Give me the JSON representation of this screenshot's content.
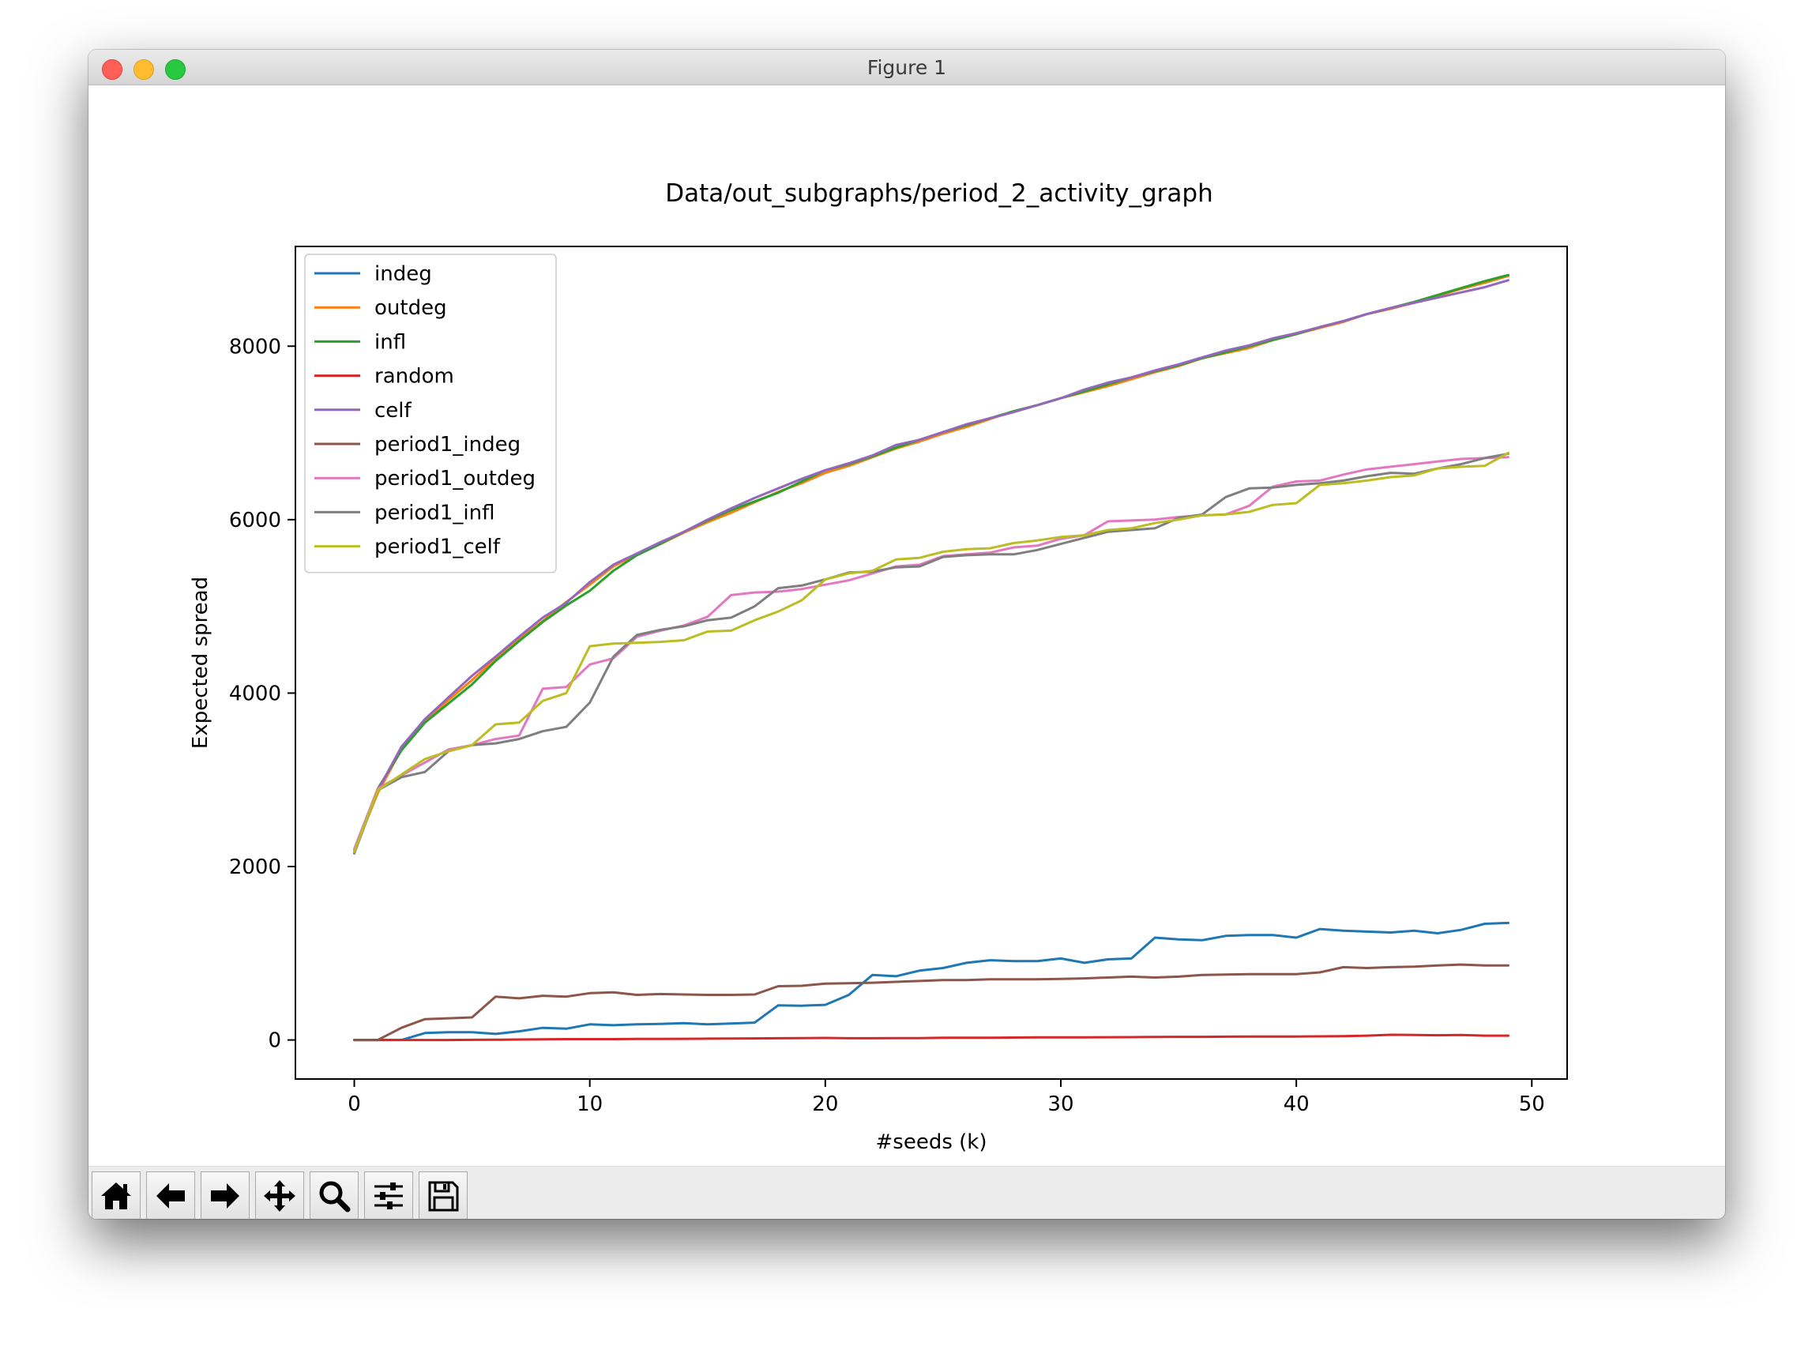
{
  "window": {
    "title": "Figure 1"
  },
  "toolbar": {
    "buttons": [
      "home-icon",
      "back-arrow-icon",
      "forward-arrow-icon",
      "pan-icon",
      "zoom-icon",
      "configure-subplots-icon",
      "save-icon"
    ]
  },
  "chart_data": {
    "type": "line",
    "title": "Data/out_subgraphs/period_2_activity_graph",
    "xlabel": "#seeds (k)",
    "ylabel": "Expected spread",
    "xlim": [
      -2.5,
      51.5
    ],
    "ylim": [
      -450,
      9150
    ],
    "xticks": [
      0,
      10,
      20,
      30,
      40,
      50
    ],
    "yticks": [
      0,
      2000,
      4000,
      6000,
      8000
    ],
    "grid": false,
    "legend_position": "upper-left",
    "x": [
      0,
      1,
      2,
      3,
      4,
      5,
      6,
      7,
      8,
      9,
      10,
      11,
      12,
      13,
      14,
      15,
      16,
      17,
      18,
      19,
      20,
      21,
      22,
      23,
      24,
      25,
      26,
      27,
      28,
      29,
      30,
      31,
      32,
      33,
      34,
      35,
      36,
      37,
      38,
      39,
      40,
      41,
      42,
      43,
      44,
      45,
      46,
      47,
      48,
      49
    ],
    "series": [
      {
        "name": "indeg",
        "color": "#1f77b4",
        "values": [
          0,
          0,
          0,
          80,
          90,
          90,
          70,
          100,
          140,
          130,
          180,
          170,
          180,
          185,
          195,
          180,
          190,
          200,
          400,
          395,
          405,
          520,
          750,
          735,
          800,
          830,
          890,
          920,
          910,
          910,
          940,
          890,
          930,
          940,
          1180,
          1160,
          1150,
          1200,
          1210,
          1210,
          1180,
          1280,
          1260,
          1250,
          1240,
          1260,
          1230,
          1270,
          1340,
          1350
        ]
      },
      {
        "name": "outdeg",
        "color": "#ff7f0e",
        "values": [
          2180,
          2850,
          3350,
          3680,
          3920,
          4150,
          4400,
          4620,
          4830,
          5050,
          5250,
          5460,
          5600,
          5720,
          5850,
          5970,
          6080,
          6200,
          6320,
          6420,
          6540,
          6620,
          6720,
          6820,
          6900,
          6990,
          7070,
          7160,
          7250,
          7320,
          7400,
          7470,
          7540,
          7620,
          7700,
          7770,
          7860,
          7920,
          7980,
          8070,
          8140,
          8210,
          8280,
          8370,
          8430,
          8500,
          8580,
          8660,
          8730,
          8810
        ]
      },
      {
        "name": "infl",
        "color": "#2ca02c",
        "values": [
          2200,
          2900,
          3340,
          3660,
          3880,
          4100,
          4370,
          4600,
          4820,
          5010,
          5180,
          5410,
          5590,
          5720,
          5860,
          5990,
          6110,
          6210,
          6310,
          6440,
          6570,
          6640,
          6730,
          6830,
          6920,
          7010,
          7090,
          7170,
          7250,
          7320,
          7400,
          7480,
          7560,
          7640,
          7710,
          7780,
          7860,
          7930,
          8000,
          8070,
          8140,
          8220,
          8290,
          8370,
          8440,
          8510,
          8590,
          8670,
          8750,
          8820
        ]
      },
      {
        "name": "random",
        "color": "#d62728",
        "values": [
          0,
          0,
          0,
          0,
          0,
          2,
          3,
          5,
          7,
          10,
          10,
          10,
          12,
          13,
          14,
          15,
          16,
          18,
          20,
          22,
          24,
          20,
          20,
          22,
          22,
          25,
          25,
          26,
          28,
          30,
          30,
          30,
          32,
          33,
          35,
          36,
          36,
          38,
          40,
          40,
          40,
          42,
          44,
          50,
          60,
          58,
          55,
          58,
          50,
          50
        ]
      },
      {
        "name": "celf",
        "color": "#9467bd",
        "values": [
          2160,
          2880,
          3380,
          3700,
          3950,
          4200,
          4420,
          4650,
          4870,
          5040,
          5280,
          5480,
          5610,
          5740,
          5860,
          6000,
          6130,
          6250,
          6360,
          6470,
          6570,
          6650,
          6740,
          6860,
          6920,
          7010,
          7100,
          7170,
          7240,
          7320,
          7400,
          7500,
          7580,
          7640,
          7720,
          7790,
          7870,
          7950,
          8010,
          8090,
          8150,
          8220,
          8290,
          8370,
          8440,
          8500,
          8560,
          8620,
          8680,
          8760
        ]
      },
      {
        "name": "period1_indeg",
        "color": "#8c564b",
        "values": [
          0,
          0,
          140,
          240,
          250,
          260,
          500,
          480,
          510,
          500,
          540,
          550,
          520,
          530,
          525,
          520,
          520,
          525,
          620,
          625,
          650,
          655,
          660,
          670,
          680,
          690,
          690,
          700,
          700,
          700,
          705,
          710,
          720,
          730,
          720,
          730,
          750,
          755,
          760,
          760,
          760,
          780,
          840,
          830,
          840,
          845,
          860,
          870,
          860,
          860
        ]
      },
      {
        "name": "period1_outdeg",
        "color": "#e377c2",
        "values": [
          2200,
          2900,
          3050,
          3200,
          3350,
          3400,
          3470,
          3510,
          4050,
          4070,
          4330,
          4400,
          4650,
          4720,
          4780,
          4880,
          5130,
          5160,
          5170,
          5200,
          5250,
          5300,
          5380,
          5460,
          5480,
          5580,
          5600,
          5620,
          5680,
          5700,
          5780,
          5820,
          5980,
          5990,
          6000,
          6030,
          6050,
          6060,
          6160,
          6380,
          6440,
          6450,
          6520,
          6580,
          6610,
          6640,
          6670,
          6700,
          6710,
          6720
        ]
      },
      {
        "name": "period1_infl",
        "color": "#7f7f7f",
        "values": [
          2150,
          2880,
          3030,
          3090,
          3330,
          3400,
          3420,
          3470,
          3560,
          3610,
          3890,
          4420,
          4670,
          4730,
          4770,
          4840,
          4870,
          5000,
          5210,
          5240,
          5310,
          5390,
          5400,
          5450,
          5460,
          5570,
          5590,
          5600,
          5600,
          5650,
          5720,
          5790,
          5860,
          5880,
          5900,
          6020,
          6060,
          6260,
          6360,
          6370,
          6400,
          6420,
          6450,
          6500,
          6540,
          6530,
          6590,
          6640,
          6710,
          6760
        ]
      },
      {
        "name": "period1_celf",
        "color": "#bcbd22",
        "values": [
          2170,
          2880,
          3060,
          3240,
          3330,
          3400,
          3640,
          3660,
          3910,
          4000,
          4540,
          4570,
          4580,
          4590,
          4610,
          4710,
          4720,
          4840,
          4940,
          5070,
          5310,
          5380,
          5410,
          5540,
          5560,
          5630,
          5660,
          5670,
          5730,
          5760,
          5800,
          5820,
          5880,
          5900,
          5960,
          6000,
          6050,
          6060,
          6090,
          6170,
          6190,
          6400,
          6420,
          6450,
          6490,
          6510,
          6590,
          6610,
          6620,
          6770
        ]
      }
    ]
  }
}
